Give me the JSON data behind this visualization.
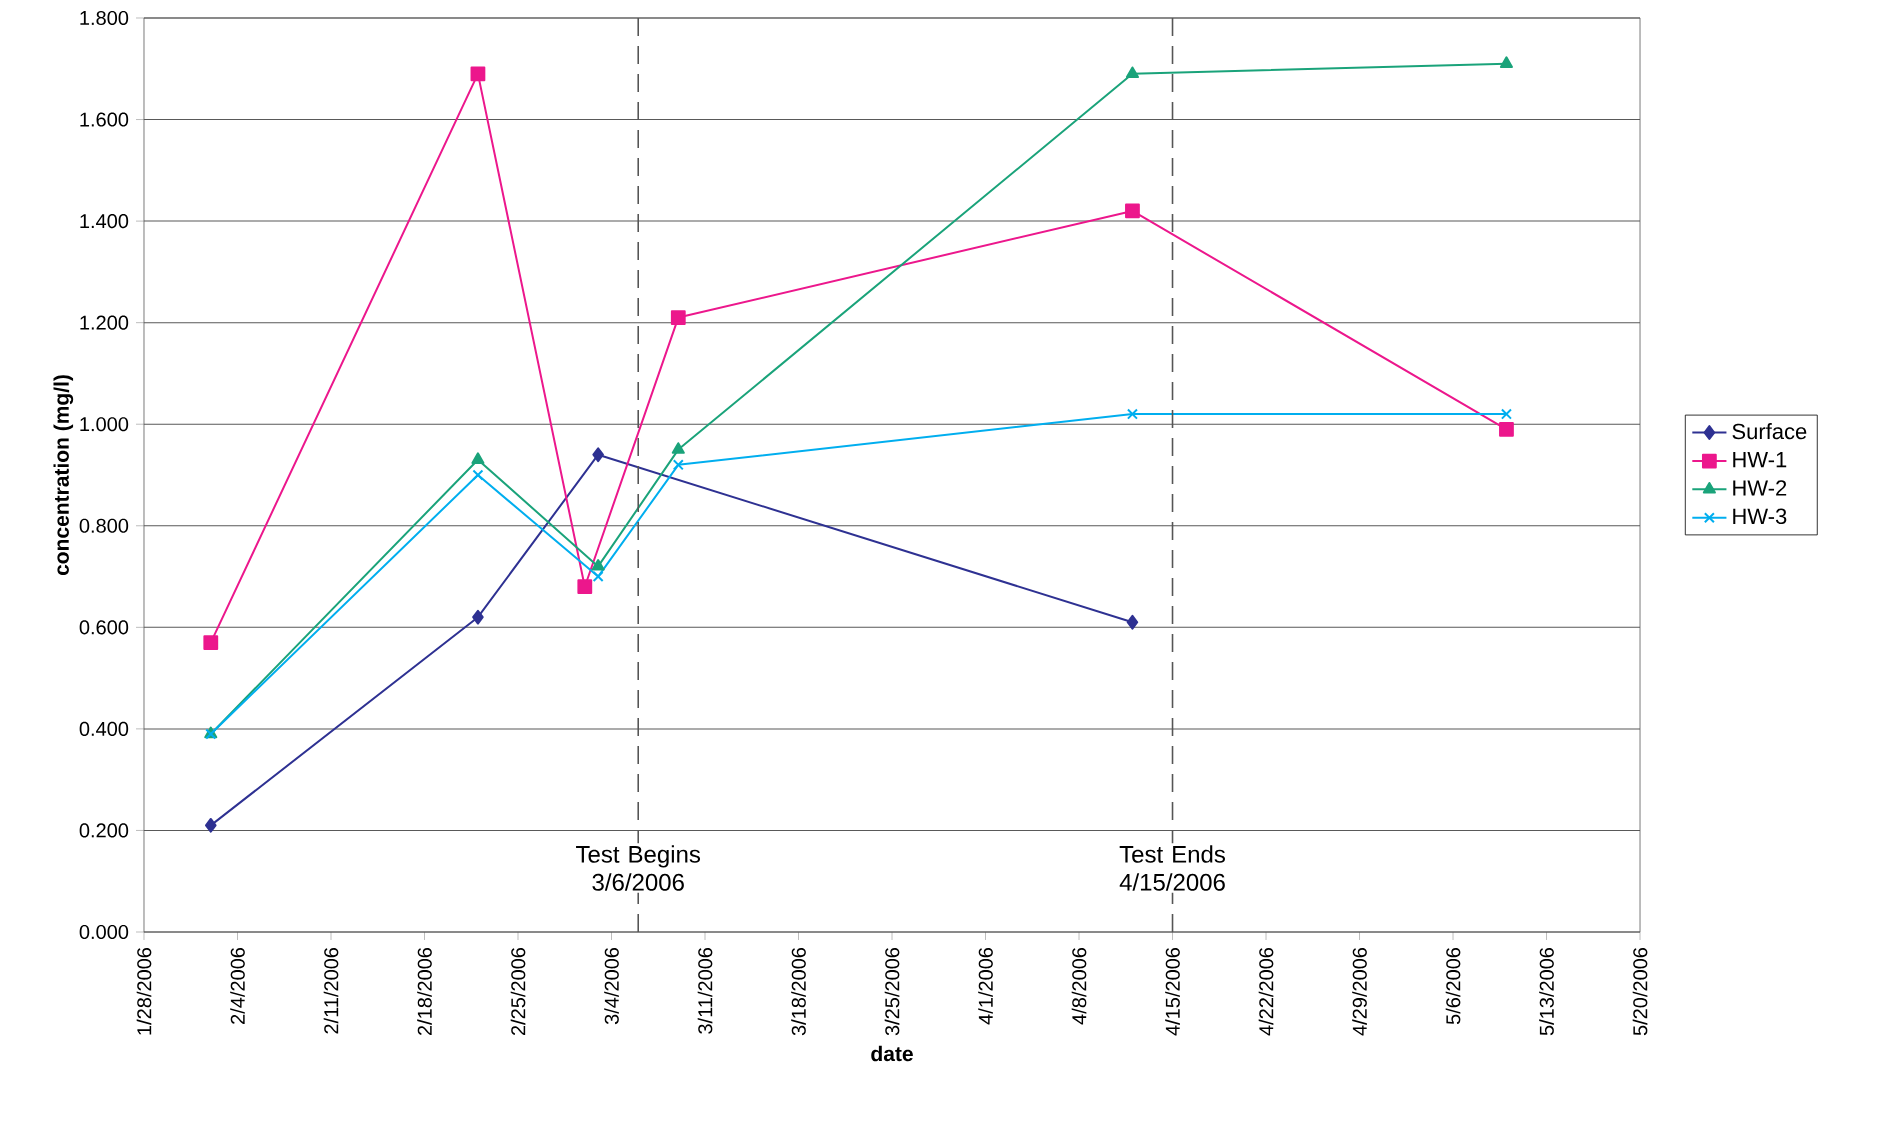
{
  "chart_data": {
    "type": "line",
    "xlabel": "date",
    "ylabel": "concentration (mg/l)",
    "xlim": [
      "2006-01-28",
      "2006-05-20"
    ],
    "xticks": [
      {
        "value": "2006-01-28",
        "label": "1/28/2006"
      },
      {
        "value": "2006-02-04",
        "label": "2/4/2006"
      },
      {
        "value": "2006-02-11",
        "label": "2/11/2006"
      },
      {
        "value": "2006-02-18",
        "label": "2/18/2006"
      },
      {
        "value": "2006-02-25",
        "label": "2/25/2006"
      },
      {
        "value": "2006-03-04",
        "label": "3/4/2006"
      },
      {
        "value": "2006-03-11",
        "label": "3/11/2006"
      },
      {
        "value": "2006-03-18",
        "label": "3/18/2006"
      },
      {
        "value": "2006-03-25",
        "label": "3/25/2006"
      },
      {
        "value": "2006-04-01",
        "label": "4/1/2006"
      },
      {
        "value": "2006-04-08",
        "label": "4/8/2006"
      },
      {
        "value": "2006-04-15",
        "label": "4/15/2006"
      },
      {
        "value": "2006-04-22",
        "label": "4/22/2006"
      },
      {
        "value": "2006-04-29",
        "label": "4/29/2006"
      },
      {
        "value": "2006-05-06",
        "label": "5/6/2006"
      },
      {
        "value": "2006-05-13",
        "label": "5/13/2006"
      },
      {
        "value": "2006-05-20",
        "label": "5/20/2006"
      }
    ],
    "ylim": [
      0,
      1.8
    ],
    "yticks": [
      {
        "value": 0,
        "label": "0.000"
      },
      {
        "value": 0.2,
        "label": "0.200"
      },
      {
        "value": 0.4,
        "label": "0.400"
      },
      {
        "value": 0.6,
        "label": "0.600"
      },
      {
        "value": 0.8,
        "label": "0.800"
      },
      {
        "value": 1.0,
        "label": "1.000"
      },
      {
        "value": 1.2,
        "label": "1.200"
      },
      {
        "value": 1.4,
        "label": "1.400"
      },
      {
        "value": 1.6,
        "label": "1.600"
      },
      {
        "value": 1.8,
        "label": "1.800"
      }
    ],
    "grid": "y",
    "legend": "right",
    "series": [
      {
        "name": "Surface",
        "color": "#2e3192",
        "marker": "diamond",
        "x": [
          "2006-02-02",
          "2006-02-22",
          "2006-03-03",
          "2006-04-12"
        ],
        "values": [
          0.21,
          0.62,
          0.94,
          0.61
        ]
      },
      {
        "name": "HW-1",
        "color": "#ec178c",
        "marker": "square",
        "x": [
          "2006-02-02",
          "2006-02-22",
          "2006-03-02",
          "2006-03-09",
          "2006-04-12",
          "2006-05-10"
        ],
        "values": [
          0.57,
          1.69,
          0.68,
          1.21,
          1.42,
          0.99
        ]
      },
      {
        "name": "HW-2",
        "color": "#1aa37a",
        "marker": "triangle",
        "x": [
          "2006-02-02",
          "2006-02-22",
          "2006-03-03",
          "2006-03-09",
          "2006-04-12",
          "2006-05-10"
        ],
        "values": [
          0.39,
          0.93,
          0.72,
          0.95,
          1.69,
          1.71
        ]
      },
      {
        "name": "HW-3",
        "color": "#00aeef",
        "marker": "cross",
        "x": [
          "2006-02-02",
          "2006-02-22",
          "2006-03-03",
          "2006-03-09",
          "2006-04-12",
          "2006-05-10"
        ],
        "values": [
          0.39,
          0.9,
          0.7,
          0.92,
          1.02,
          1.02
        ]
      }
    ],
    "ref_lines": [
      {
        "axis": "x",
        "value": "2006-03-06",
        "label": "Test Begins 3/6/2006",
        "color": "#555555",
        "line_style": "dashed"
      },
      {
        "axis": "x",
        "value": "2006-04-15",
        "label": "Test Ends 4/15/2006",
        "color": "#555555",
        "line_style": "dashed"
      }
    ]
  }
}
